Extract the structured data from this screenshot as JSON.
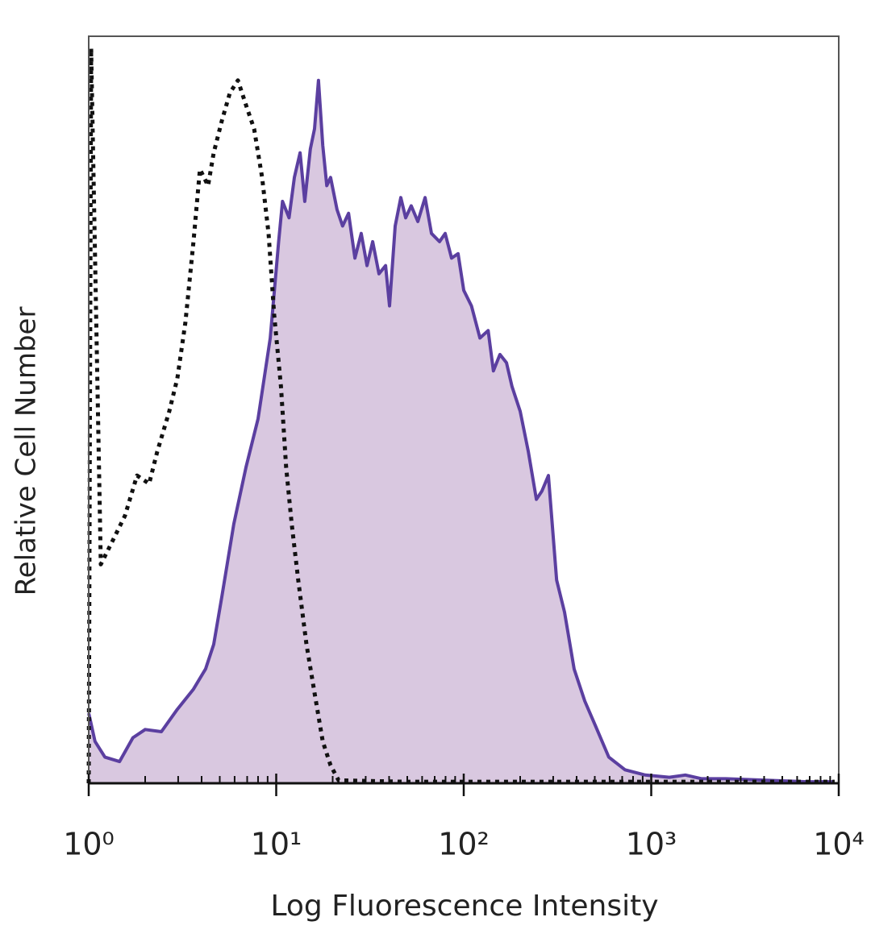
{
  "chart_data": {
    "type": "histogram-overlay",
    "x_label": "Log Fluorescence Intensity",
    "y_label": "Relative Cell Number",
    "xscale": "log",
    "xlim": [
      1,
      10000
    ],
    "ylim": [
      0,
      100
    ],
    "xticks": [
      {
        "value": 1,
        "label": "10⁰"
      },
      {
        "value": 10,
        "label": "10¹"
      },
      {
        "value": 100,
        "label": "10²"
      },
      {
        "value": 1000,
        "label": "10³"
      },
      {
        "value": 10000,
        "label": "10⁴"
      }
    ],
    "xminorticks": [
      2,
      3,
      4,
      5,
      6,
      7,
      8,
      9,
      20,
      30,
      40,
      50,
      60,
      70,
      80,
      90,
      200,
      300,
      400,
      500,
      600,
      700,
      800,
      900,
      2000,
      3000,
      4000,
      5000,
      6000,
      7000,
      8000,
      9000
    ],
    "series": [
      {
        "color": "#5b3fa0",
        "fill_color": "#d9c8e0",
        "line_style": "solid",
        "x": [
          1,
          1.08,
          1.22,
          1.46,
          1.72,
          2.0,
          2.44,
          2.97,
          3.62,
          4.2,
          4.64,
          5.13,
          5.94,
          6.9,
          8.0,
          9.29,
          10.3,
          10.8,
          11.7,
          12.5,
          13.4,
          14.2,
          15.2,
          16.0,
          16.8,
          17.7,
          18.6,
          19.5,
          21.1,
          22.6,
          24.3,
          26.3,
          28.4,
          30.5,
          32.7,
          35.3,
          38.3,
          40.2,
          43.1,
          46.2,
          49.0,
          52.5,
          56.9,
          62.2,
          67.3,
          74.3,
          79.6,
          86.1,
          93.3,
          100,
          110,
          122,
          135,
          144,
          156,
          169,
          181,
          200,
          221,
          244,
          261,
          283,
          313,
          345,
          388,
          442,
          502,
          594,
          725,
          929,
          1250,
          1520,
          1860,
          2500,
          4100,
          6730,
          9510
        ],
        "values": [
          9.4,
          5.6,
          3.5,
          2.9,
          6.1,
          7.2,
          6.9,
          9.9,
          12.6,
          15.3,
          18.6,
          25.0,
          34.7,
          42.3,
          48.8,
          59.6,
          72.5,
          77.9,
          75.7,
          81.1,
          84.4,
          77.9,
          84.9,
          87.6,
          94.1,
          85.4,
          80.0,
          81.1,
          76.8,
          74.6,
          76.3,
          70.3,
          73.6,
          69.3,
          72.5,
          68.2,
          69.3,
          63.9,
          74.6,
          78.4,
          75.7,
          77.3,
          75.2,
          78.4,
          73.6,
          72.5,
          73.6,
          70.3,
          70.9,
          66.0,
          63.9,
          59.6,
          60.6,
          55.2,
          57.4,
          56.3,
          53.1,
          49.8,
          44.4,
          38.0,
          39.1,
          41.2,
          27.2,
          22.9,
          15.3,
          11.0,
          7.8,
          3.5,
          1.8,
          1.1,
          0.8,
          1.1,
          0.6,
          0.6,
          0.4,
          0.2,
          0.2
        ]
      },
      {
        "color": "#111111",
        "line_style": "dotted",
        "x": [
          1,
          1.03,
          1.16,
          1.35,
          1.56,
          1.81,
          2.1,
          2.32,
          2.69,
          2.97,
          3.28,
          3.62,
          3.92,
          4.33,
          4.64,
          5.13,
          5.66,
          6.25,
          6.9,
          7.62,
          8.41,
          9.1,
          9.75,
          10.6,
          11.3,
          12.1,
          13.1,
          14.5,
          16.0,
          17.7,
          19.5,
          21.5,
          47.6,
          9510
        ],
        "values": [
          0,
          98.4,
          29.3,
          32.6,
          35.8,
          41.2,
          40.1,
          44.4,
          49.8,
          54.2,
          61.7,
          72.5,
          82.2,
          80.0,
          84.4,
          88.7,
          92.4,
          94.1,
          90.8,
          87.6,
          81.1,
          73.6,
          62.8,
          53.1,
          42.3,
          34.7,
          27.2,
          18.6,
          12.1,
          5.6,
          2.4,
          0.4,
          0.2,
          0.2
        ]
      }
    ]
  }
}
